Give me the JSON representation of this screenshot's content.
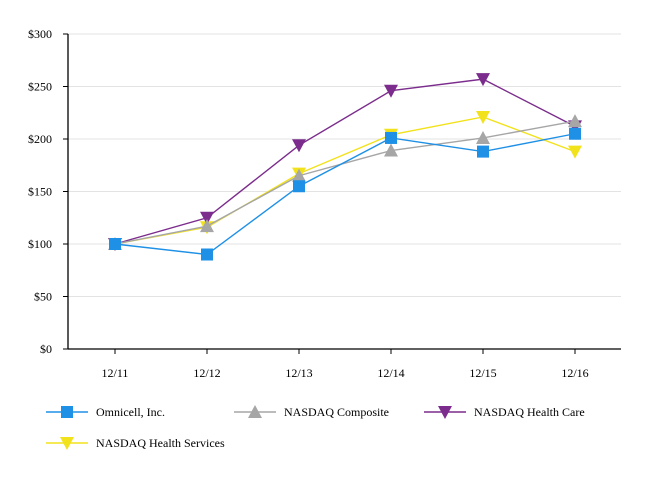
{
  "chart_data": {
    "type": "line",
    "title": "",
    "xlabel": "",
    "ylabel": "",
    "categories": [
      "12/11",
      "12/12",
      "12/13",
      "12/14",
      "12/15",
      "12/16"
    ],
    "yticks": [
      "$0",
      "$50",
      "$100",
      "$150",
      "$200",
      "$250",
      "$300"
    ],
    "ylim": [
      0,
      300
    ],
    "grid": true,
    "legend_position": "bottom",
    "series": [
      {
        "name": "Omnicell, Inc.",
        "color": "#1E90E6",
        "marker": "square",
        "values": [
          100,
          90,
          155,
          201,
          188,
          205
        ]
      },
      {
        "name": "NASDAQ Composite",
        "color": "#A6A6A6",
        "marker": "triangle-up",
        "values": [
          100,
          117,
          165,
          189,
          201,
          217
        ]
      },
      {
        "name": "NASDAQ Health Care",
        "color": "#7B2C8C",
        "marker": "triangle-down",
        "values": [
          100,
          125,
          194,
          246,
          257,
          212
        ]
      },
      {
        "name": "NASDAQ Health Services",
        "color": "#F2E21C",
        "marker": "triangle-down",
        "values": [
          100,
          116,
          167,
          204,
          221,
          188
        ]
      }
    ]
  }
}
